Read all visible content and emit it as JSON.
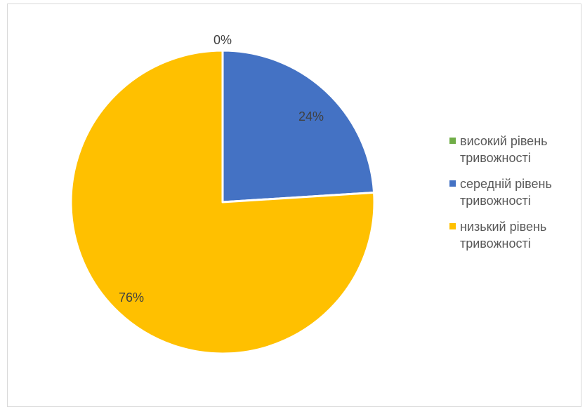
{
  "chart_data": {
    "type": "pie",
    "categories": [
      "високий рівень тривожності",
      "середній рівень тривожності",
      "низький рівень тривожності"
    ],
    "values": [
      0,
      24,
      76
    ],
    "data_labels": [
      "0%",
      "24%",
      "76%"
    ],
    "colors": [
      "#70ad47",
      "#4472c4",
      "#ffc000"
    ],
    "legend_position": "right",
    "title": ""
  }
}
